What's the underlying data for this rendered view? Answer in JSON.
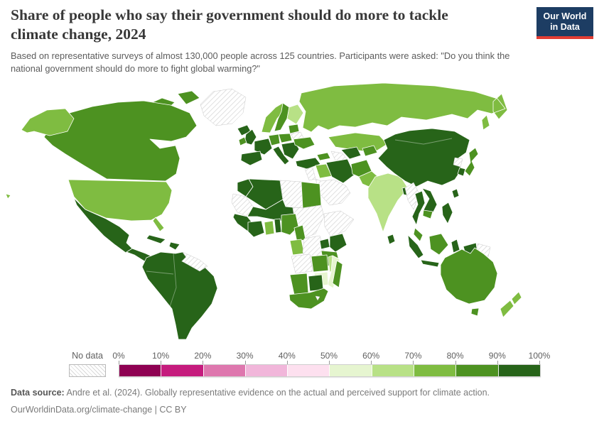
{
  "header": {
    "title": {
      "line1": "Share of people who say their government should do more to tackle",
      "line2": "climate change, 2024"
    },
    "subtitle_lines": {
      "line1": "Based on representative surveys of almost 130,000 people across 125 countries. Participants were asked: \"Do you think the",
      "line2": "national government should do more to fight global warming?\""
    },
    "logo": {
      "line1": "Our World",
      "line2": "in Data",
      "bg_color": "#1d3d63",
      "accent_color": "#e23d33"
    }
  },
  "footer": {
    "source_label": "Data source:",
    "source_text": " Andre et al. (2024). Globally representative evidence on the actual and perceived support for climate action.",
    "license_line": "OurWorldinData.org/climate-change | CC BY"
  },
  "chart_data": {
    "type": "choropleth",
    "title": "Share of people who say their government should do more to tackle climate change, 2024",
    "year": "2024",
    "unit": "%",
    "legend": {
      "no_data_label": "No data",
      "tick_labels": [
        "0%",
        "10%",
        "20%",
        "30%",
        "40%",
        "50%",
        "60%",
        "70%",
        "80%",
        "90%",
        "100%"
      ],
      "bins": [
        {
          "range": "0-10",
          "color": "#8e0152"
        },
        {
          "range": "10-20",
          "color": "#c51b7d"
        },
        {
          "range": "20-30",
          "color": "#de77ae"
        },
        {
          "range": "30-40",
          "color": "#f1b6da"
        },
        {
          "range": "40-50",
          "color": "#fde0ef"
        },
        {
          "range": "50-60",
          "color": "#e6f5d0"
        },
        {
          "range": "60-70",
          "color": "#b8e186"
        },
        {
          "range": "70-80",
          "color": "#7fbc41"
        },
        {
          "range": "80-90",
          "color": "#4d9221"
        },
        {
          "range": "90-100",
          "color": "#276419"
        }
      ]
    },
    "regions": {
      "greenland": "no-data",
      "canadian-arctic-islands": "80-90",
      "canada": "80-90",
      "alaska": "70-80",
      "usa": "70-80",
      "hawaii": "70-80",
      "mexico": "90-100",
      "central-america": "90-100",
      "cuba": "90-100",
      "hispaniola": "90-100",
      "south-america": "90-100",
      "guyanas": "no-data",
      "iceland": "90-100",
      "united-kingdom": "90-100",
      "ireland": "80-90",
      "norway": "70-80",
      "sweden": "80-90",
      "finland": "60-70",
      "baltics": "80-90",
      "belarus": "no-data",
      "poland": "80-90",
      "germany": "80-90",
      "france": "90-100",
      "iberia": "90-100",
      "italy": "90-100",
      "balkans": "90-100",
      "ukraine": "80-90",
      "russia": "70-80",
      "kazakhstan": "70-80",
      "caucasus": "80-90",
      "uzbekistan": "90-100",
      "turkmenistan": "no-data",
      "kyrgyzstan-tajikistan": "80-90",
      "turkey": "90-100",
      "levant": "no-data",
      "iraq": "70-80",
      "iran": "90-100",
      "saudi-arabia": "no-data",
      "afghanistan": "80-90",
      "pakistan": "70-80",
      "india": "60-70",
      "sri-lanka": "90-100",
      "bangladesh": "90-100",
      "china": "90-100",
      "north-korea": "no-data",
      "south-korea": "90-100",
      "japan": "80-90",
      "taiwan": "90-100",
      "myanmar": "no-data",
      "thailand": "90-100",
      "laos-vietnam": "90-100",
      "cambodia": "80-90",
      "malaysia": "80-90",
      "sumatra": "90-100",
      "java": "90-100",
      "borneo": "80-90",
      "sulawesi": "90-100",
      "philippines": "90-100",
      "west-new-guinea": "90-100",
      "papua-new-guinea": "no-data",
      "australia": "80-90",
      "tasmania": "80-90",
      "new-zealand": "70-80",
      "morocco": "90-100",
      "algeria": "90-100",
      "libya": "no-data",
      "egypt": "80-90",
      "western-sahara-mauritania": "no-data",
      "mali-niger": "90-100",
      "chad-sudan": "no-data",
      "ethiopia-horn": "no-data",
      "senegal-guinea": "90-100",
      "ivory-liberia": "90-100",
      "ghana": "70-80",
      "togo-benin": "90-100",
      "nigeria": "80-90",
      "cameroon": "80-90",
      "gabon-congo": "70-80",
      "drc": "no-data",
      "uganda": "90-100",
      "kenya": "90-100",
      "tanzania": "80-90",
      "angola": "no-data",
      "zambia": "80-90",
      "malawi": "60-70",
      "mozambique": "50-60",
      "zimbabwe": "50-60",
      "namibia": "80-90",
      "botswana": "90-100",
      "south-africa": "80-90",
      "lesotho": "no-data",
      "madagascar": "80-90"
    }
  }
}
